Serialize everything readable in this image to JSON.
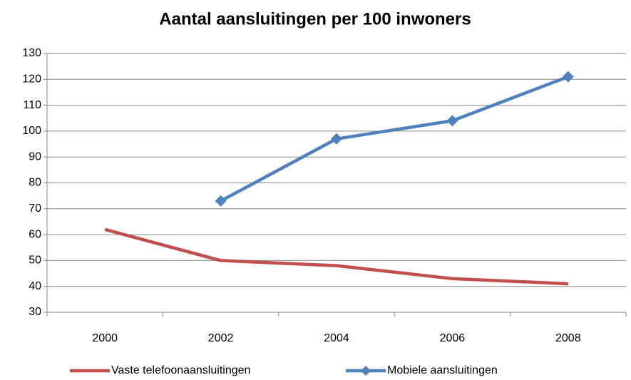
{
  "chart_data": {
    "type": "line",
    "title": "Aantal aansluitingen per 100 inwoners",
    "categories": [
      "2000",
      "2002",
      "2004",
      "2006",
      "2008"
    ],
    "series": [
      {
        "name": "Vaste telefoonaansluitingen",
        "color": "#c0504d",
        "values": [
          62,
          50,
          48,
          43,
          41
        ]
      },
      {
        "name": "Mobiele aansluitingen",
        "color": "#4f81bd",
        "marker": "diamond",
        "values": [
          null,
          73,
          97,
          104,
          121
        ]
      }
    ],
    "ylim": [
      30,
      130
    ],
    "yticks": [
      30,
      40,
      50,
      60,
      70,
      80,
      90,
      100,
      110,
      120,
      130
    ],
    "grid": true,
    "legend": "bottom"
  }
}
